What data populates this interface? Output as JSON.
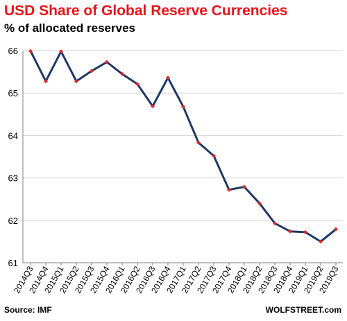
{
  "header": {
    "title": "USD Share of Global  Reserve Currencies",
    "subtitle": "% of allocated reserves"
  },
  "footer": {
    "source": "Source: IMF",
    "credit": "WOLFSTREET.com"
  },
  "colors": {
    "title": "#e8141b",
    "line": "#1f3864",
    "marker": "#e0262b",
    "grid": "#d4d4d4",
    "axis": "#808080"
  },
  "chart_data": {
    "type": "line",
    "title": "USD Share of Global  Reserve Currencies",
    "subtitle": "% of allocated reserves",
    "xlabel": "",
    "ylabel": "",
    "ylim": [
      61,
      66
    ],
    "yticks": [
      "61",
      "62",
      "63",
      "64",
      "65",
      "66"
    ],
    "grid": true,
    "legend": "none",
    "categories": [
      "2014Q3",
      "2014Q4",
      "2015Q1",
      "2015Q2",
      "2015Q3",
      "2015Q4",
      "2016Q1",
      "2016Q2",
      "2016Q3",
      "2016Q4",
      "2017Q1",
      "2017Q2",
      "2017Q3",
      "2017Q4",
      "2018Q1",
      "2018Q2",
      "2018Q3",
      "2018Q4",
      "2019Q1",
      "2019Q2",
      "2019Q3"
    ],
    "series": [
      {
        "values": [
          65.99,
          65.28,
          65.98,
          65.28,
          65.52,
          65.73,
          65.45,
          65.21,
          64.69,
          65.36,
          64.68,
          63.83,
          63.52,
          62.72,
          62.79,
          62.4,
          61.93,
          61.74,
          61.72,
          61.5,
          61.79
        ]
      }
    ]
  }
}
